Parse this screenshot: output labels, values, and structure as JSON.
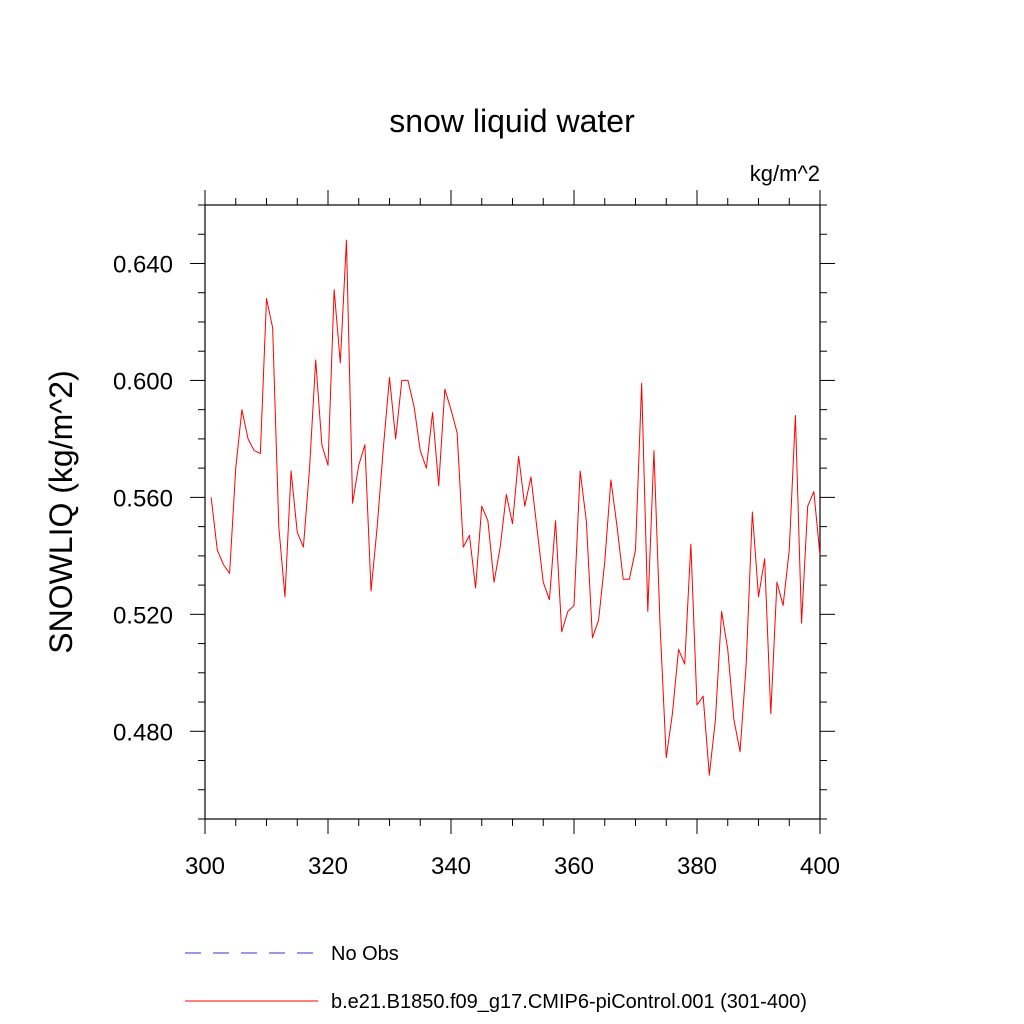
{
  "chart_data": {
    "type": "line",
    "title": "snow liquid water",
    "units_label": "kg/m^2",
    "ylabel": "SNOWLIQ  (kg/m^2)",
    "xlabel": "",
    "xlim": [
      300,
      400
    ],
    "ylim": [
      0.45,
      0.66
    ],
    "xticks": [
      300,
      320,
      340,
      360,
      380,
      400
    ],
    "xtick_labels": [
      "300",
      "320",
      "340",
      "360",
      "380",
      "400"
    ],
    "yticks": [
      0.48,
      0.52,
      0.56,
      0.6,
      0.64
    ],
    "ytick_labels": [
      "0.480",
      "0.520",
      "0.560",
      "0.600",
      "0.640"
    ],
    "grid": false,
    "series": [
      {
        "name": "No Obs",
        "color": "#3333cc",
        "dash": true,
        "x": [],
        "values": []
      },
      {
        "name": "b.e21.B1850.f09_g17.CMIP6-piControl.001 (301-400)",
        "color": "#ff0000",
        "dash": false,
        "x": [
          301,
          302,
          303,
          304,
          305,
          306,
          307,
          308,
          309,
          310,
          311,
          312,
          313,
          314,
          315,
          316,
          317,
          318,
          319,
          320,
          321,
          322,
          323,
          324,
          325,
          326,
          327,
          328,
          329,
          330,
          331,
          332,
          333,
          334,
          335,
          336,
          337,
          338,
          339,
          340,
          341,
          342,
          343,
          344,
          345,
          346,
          347,
          348,
          349,
          350,
          351,
          352,
          353,
          354,
          355,
          356,
          357,
          358,
          359,
          360,
          361,
          362,
          363,
          364,
          365,
          366,
          367,
          368,
          369,
          370,
          371,
          372,
          373,
          374,
          375,
          376,
          377,
          378,
          379,
          380,
          381,
          382,
          383,
          384,
          385,
          386,
          387,
          388,
          389,
          390,
          391,
          392,
          393,
          394,
          395,
          396,
          397,
          398,
          399,
          400
        ],
        "values": [
          0.56,
          0.542,
          0.537,
          0.534,
          0.57,
          0.59,
          0.58,
          0.576,
          0.575,
          0.628,
          0.618,
          0.55,
          0.526,
          0.569,
          0.548,
          0.543,
          0.57,
          0.607,
          0.578,
          0.571,
          0.631,
          0.606,
          0.648,
          0.558,
          0.571,
          0.578,
          0.528,
          0.55,
          0.577,
          0.601,
          0.58,
          0.6,
          0.6,
          0.591,
          0.576,
          0.57,
          0.589,
          0.564,
          0.597,
          0.59,
          0.582,
          0.543,
          0.547,
          0.529,
          0.557,
          0.552,
          0.531,
          0.543,
          0.561,
          0.551,
          0.574,
          0.557,
          0.567,
          0.549,
          0.531,
          0.525,
          0.552,
          0.514,
          0.521,
          0.523,
          0.569,
          0.552,
          0.512,
          0.518,
          0.538,
          0.566,
          0.55,
          0.532,
          0.532,
          0.542,
          0.599,
          0.521,
          0.576,
          0.516,
          0.471,
          0.486,
          0.508,
          0.503,
          0.544,
          0.489,
          0.492,
          0.465,
          0.484,
          0.521,
          0.508,
          0.484,
          0.473,
          0.503,
          0.555,
          0.526,
          0.539,
          0.486,
          0.531,
          0.523,
          0.542,
          0.588,
          0.517,
          0.557,
          0.562,
          0.54
        ]
      }
    ],
    "legend": {
      "placement": "bottom-left",
      "entries": [
        "No Obs",
        "b.e21.B1850.f09_g17.CMIP6-piControl.001 (301-400)"
      ]
    }
  }
}
